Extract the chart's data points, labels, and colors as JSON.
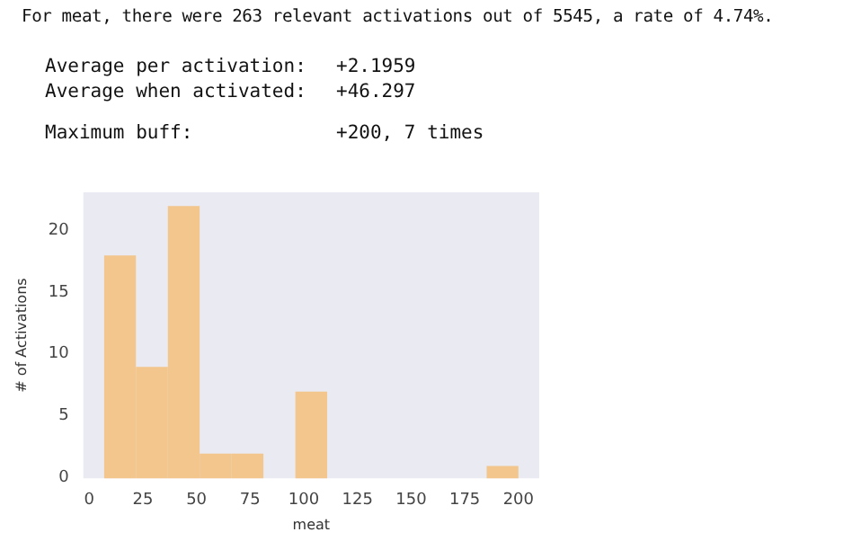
{
  "chart_data": {
    "type": "histogram",
    "title": "For meat, there were 263 relevant activations out of 5545, a rate of 4.74%.",
    "annotations": [
      "Average per activation:",
      "+2.1959",
      "Average when activated:",
      "+46.297",
      "Maximum buff:",
      "+200, 7 times"
    ],
    "xlabel": "meat",
    "ylabel": "# of Activations",
    "bins": [
      7.0,
      21.8,
      36.7,
      51.5,
      66.4,
      81.2,
      96.1,
      110.9,
      125.8,
      140.6,
      155.5,
      170.3,
      185.2,
      200.0
    ],
    "values": [
      18,
      9,
      22,
      2,
      2,
      0,
      7,
      0,
      0,
      0,
      0,
      0,
      1
    ],
    "color": "#f2c68c",
    "xlim": [
      -2.7,
      209.7
    ],
    "xticks": [
      0,
      25,
      50,
      75,
      100,
      125,
      150,
      175,
      200
    ],
    "ylim": [
      0,
      23.1
    ],
    "yticks": [
      0,
      5,
      10,
      15,
      20
    ],
    "grid": false
  }
}
